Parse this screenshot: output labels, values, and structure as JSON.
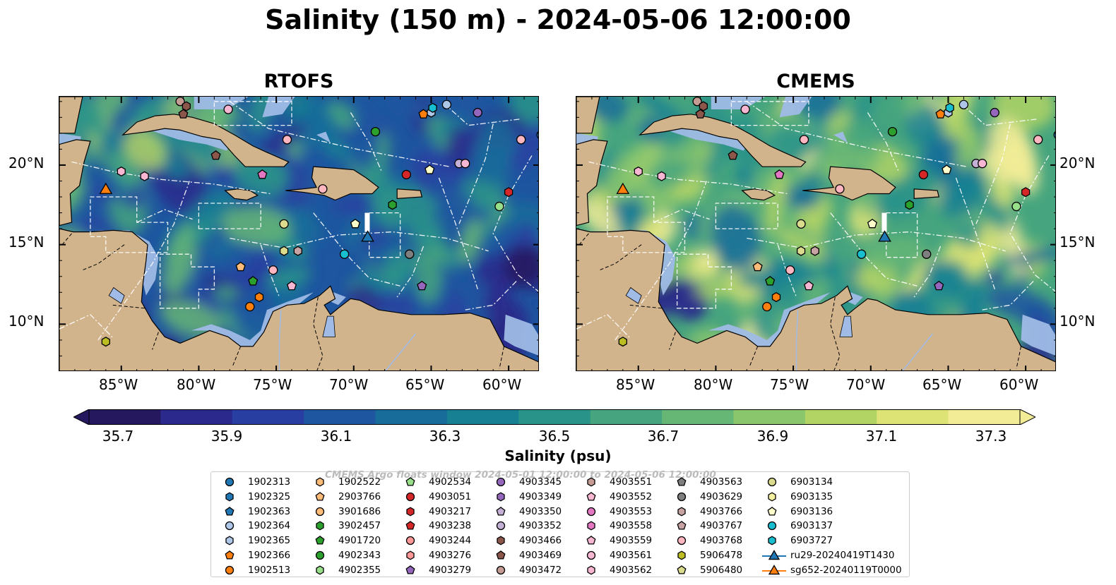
{
  "title": "Salinity (150 m) - 2024-05-06 12:00:00",
  "panels": [
    {
      "title": "RTOFS",
      "palette": "rtofs"
    },
    {
      "title": "CMEMS",
      "palette": "cmems"
    }
  ],
  "lon_ticks": [
    "85°W",
    "80°W",
    "75°W",
    "70°W",
    "65°W",
    "60°W"
  ],
  "lat_ticks": [
    "20°N",
    "15°N",
    "10°N"
  ],
  "colorbar": {
    "label": "Salinity (psu)",
    "ticks": [
      "35.7",
      "35.9",
      "36.1",
      "36.3",
      "36.5",
      "36.7",
      "36.9",
      "37.1",
      "37.3"
    ],
    "colors": [
      "#26185f",
      "#2b2a8c",
      "#283ea1",
      "#1e56a0",
      "#176c9a",
      "#178093",
      "#2a9389",
      "#46a57e",
      "#66b675",
      "#8ac66c",
      "#b1d465",
      "#dde475",
      "#f2ec96"
    ],
    "extend": "both"
  },
  "legend_watermark": "CMEMS Argo floats window 2024-05-01 12:00:00 to 2024-05-06 12:00:00",
  "legend": [
    {
      "label": "1902313",
      "color": "#1f77b4",
      "marker": "circle"
    },
    {
      "label": "1902325",
      "color": "#1f77b4",
      "marker": "hexagon"
    },
    {
      "label": "1902363",
      "color": "#1f77b4",
      "marker": "pentagon"
    },
    {
      "label": "1902364",
      "color": "#aec7e8",
      "marker": "circle"
    },
    {
      "label": "1902365",
      "color": "#aec7e8",
      "marker": "hexagon"
    },
    {
      "label": "1902366",
      "color": "#ff7f0e",
      "marker": "pentagon"
    },
    {
      "label": "1902513",
      "color": "#ff7f0e",
      "marker": "circle"
    },
    {
      "label": "1902522",
      "color": "#ffbb78",
      "marker": "hexagon"
    },
    {
      "label": "2903766",
      "color": "#ffbb78",
      "marker": "pentagon"
    },
    {
      "label": "3901686",
      "color": "#ffbb78",
      "marker": "circle"
    },
    {
      "label": "3902457",
      "color": "#2ca02c",
      "marker": "hexagon"
    },
    {
      "label": "4901720",
      "color": "#2ca02c",
      "marker": "pentagon"
    },
    {
      "label": "4902343",
      "color": "#2ca02c",
      "marker": "circle"
    },
    {
      "label": "4902355",
      "color": "#98df8a",
      "marker": "hexagon"
    },
    {
      "label": "4902534",
      "color": "#98df8a",
      "marker": "pentagon"
    },
    {
      "label": "4903051",
      "color": "#d62728",
      "marker": "circle"
    },
    {
      "label": "4903217",
      "color": "#d62728",
      "marker": "hexagon"
    },
    {
      "label": "4903238",
      "color": "#d62728",
      "marker": "pentagon"
    },
    {
      "label": "4903244",
      "color": "#ff9896",
      "marker": "circle"
    },
    {
      "label": "4903276",
      "color": "#ff9896",
      "marker": "hexagon"
    },
    {
      "label": "4903279",
      "color": "#9467bd",
      "marker": "pentagon"
    },
    {
      "label": "4903345",
      "color": "#9467bd",
      "marker": "circle"
    },
    {
      "label": "4903349",
      "color": "#9467bd",
      "marker": "hexagon"
    },
    {
      "label": "4903350",
      "color": "#c5b0d5",
      "marker": "pentagon"
    },
    {
      "label": "4903352",
      "color": "#c5b0d5",
      "marker": "circle"
    },
    {
      "label": "4903466",
      "color": "#8c564b",
      "marker": "hexagon"
    },
    {
      "label": "4903469",
      "color": "#8c564b",
      "marker": "pentagon"
    },
    {
      "label": "4903472",
      "color": "#c49c94",
      "marker": "circle"
    },
    {
      "label": "4903551",
      "color": "#c49c94",
      "marker": "hexagon"
    },
    {
      "label": "4903552",
      "color": "#f7b6d2",
      "marker": "pentagon"
    },
    {
      "label": "4903553",
      "color": "#e377c2",
      "marker": "circle"
    },
    {
      "label": "4903558",
      "color": "#e377c2",
      "marker": "hexagon"
    },
    {
      "label": "4903559",
      "color": "#f7b6d2",
      "marker": "pentagon"
    },
    {
      "label": "4903561",
      "color": "#f7b6d2",
      "marker": "circle"
    },
    {
      "label": "4903562",
      "color": "#f7b6d2",
      "marker": "hexagon"
    },
    {
      "label": "4903563",
      "color": "#7f7f7f",
      "marker": "pentagon"
    },
    {
      "label": "4903629",
      "color": "#7f7f7f",
      "marker": "circle"
    },
    {
      "label": "4903766",
      "color": "#c7a3a3",
      "marker": "hexagon"
    },
    {
      "label": "4903767",
      "color": "#c7a3a3",
      "marker": "pentagon"
    },
    {
      "label": "4903768",
      "color": "#ffb6c1",
      "marker": "circle"
    },
    {
      "label": "5906478",
      "color": "#bcbd22",
      "marker": "hexagon"
    },
    {
      "label": "5906480",
      "color": "#dbdb8d",
      "marker": "pentagon"
    },
    {
      "label": "6903134",
      "color": "#dbdb8d",
      "marker": "circle"
    },
    {
      "label": "6903135",
      "color": "#f5f0a0",
      "marker": "hexagon"
    },
    {
      "label": "6903136",
      "color": "#ffffcc",
      "marker": "pentagon"
    },
    {
      "label": "6903137",
      "color": "#17becf",
      "marker": "circle"
    },
    {
      "label": "6903727",
      "color": "#17becf",
      "marker": "hexagon"
    },
    {
      "label": "ru29-20240419T1430",
      "color": "#1f77b4",
      "marker": "triangle-line"
    },
    {
      "label": "sg652-20240119T0000",
      "color": "#ff7f0e",
      "marker": "triangle-line"
    }
  ],
  "floats": [
    {
      "lon": -81.2,
      "lat": 24.0,
      "color": "#c49c94",
      "marker": "circle"
    },
    {
      "lon": -80.8,
      "lat": 23.7,
      "color": "#8c564b",
      "marker": "hexagon"
    },
    {
      "lon": -81.0,
      "lat": 23.2,
      "color": "#8c564b",
      "marker": "pentagon"
    },
    {
      "lon": -78.1,
      "lat": 23.5,
      "color": "#f7b6d2",
      "marker": "circle"
    },
    {
      "lon": -78.9,
      "lat": 20.6,
      "color": "#8c564b",
      "marker": "pentagon"
    },
    {
      "lon": -85.0,
      "lat": 19.6,
      "color": "#f7b6d2",
      "marker": "hexagon"
    },
    {
      "lon": -83.5,
      "lat": 19.3,
      "color": "#f7b6d2",
      "marker": "hexagon"
    },
    {
      "lon": -74.3,
      "lat": 21.6,
      "color": "#ffb6c1",
      "marker": "circle"
    },
    {
      "lon": -75.9,
      "lat": 19.4,
      "color": "#e377c2",
      "marker": "pentagon"
    },
    {
      "lon": -72.0,
      "lat": 18.5,
      "color": "#ffb6c1",
      "marker": "circle"
    },
    {
      "lon": -68.6,
      "lat": 22.1,
      "color": "#2ca02c",
      "marker": "circle"
    },
    {
      "lon": -65.5,
      "lat": 23.2,
      "color": "#ff7f0e",
      "marker": "pentagon"
    },
    {
      "lon": -65.0,
      "lat": 23.3,
      "color": "#aec7e8",
      "marker": "hexagon"
    },
    {
      "lon": -64.9,
      "lat": 23.6,
      "color": "#17becf",
      "marker": "hexagon"
    },
    {
      "lon": -64.0,
      "lat": 23.8,
      "color": "#aec7e8",
      "marker": "circle"
    },
    {
      "lon": -62.0,
      "lat": 23.3,
      "color": "#9467bd",
      "marker": "circle"
    },
    {
      "lon": -59.2,
      "lat": 21.6,
      "color": "#ffb6c1",
      "marker": "circle"
    },
    {
      "lon": -57.9,
      "lat": 21.9,
      "color": "#1f77b4",
      "marker": "circle"
    },
    {
      "lon": -66.6,
      "lat": 19.4,
      "color": "#d62728",
      "marker": "circle"
    },
    {
      "lon": -65.1,
      "lat": 19.7,
      "color": "#ffffcc",
      "marker": "pentagon"
    },
    {
      "lon": -63.2,
      "lat": 20.1,
      "color": "#c5b0d5",
      "marker": "circle"
    },
    {
      "lon": -62.8,
      "lat": 20.1,
      "color": "#f7b6d2",
      "marker": "circle"
    },
    {
      "lon": -60.0,
      "lat": 18.3,
      "color": "#d62728",
      "marker": "hexagon"
    },
    {
      "lon": -60.6,
      "lat": 17.4,
      "color": "#98df8a",
      "marker": "circle"
    },
    {
      "lon": -67.5,
      "lat": 17.5,
      "color": "#2ca02c",
      "marker": "hexagon"
    },
    {
      "lon": -74.5,
      "lat": 16.3,
      "color": "#dbdb8d",
      "marker": "circle"
    },
    {
      "lon": -74.5,
      "lat": 14.6,
      "color": "#dbdb8d",
      "marker": "hexagon"
    },
    {
      "lon": -73.6,
      "lat": 14.6,
      "color": "#c7a3a3",
      "marker": "hexagon"
    },
    {
      "lon": -69.9,
      "lat": 16.3,
      "color": "#ffffcc",
      "marker": "pentagon"
    },
    {
      "lon": -70.6,
      "lat": 14.4,
      "color": "#17becf",
      "marker": "circle"
    },
    {
      "lon": -66.4,
      "lat": 14.4,
      "color": "#7f7f7f",
      "marker": "circle"
    },
    {
      "lon": -77.3,
      "lat": 13.6,
      "color": "#ffbb78",
      "marker": "pentagon"
    },
    {
      "lon": -76.5,
      "lat": 12.7,
      "color": "#2ca02c",
      "marker": "pentagon"
    },
    {
      "lon": -75.2,
      "lat": 13.4,
      "color": "#ffb6c1",
      "marker": "circle"
    },
    {
      "lon": -76.1,
      "lat": 11.7,
      "color": "#ff7f0e",
      "marker": "hexagon"
    },
    {
      "lon": -74.0,
      "lat": 12.4,
      "color": "#f7b6d2",
      "marker": "pentagon"
    },
    {
      "lon": -76.7,
      "lat": 11.1,
      "color": "#ff7f0e",
      "marker": "circle"
    },
    {
      "lon": -65.6,
      "lat": 12.4,
      "color": "#9467bd",
      "marker": "pentagon"
    },
    {
      "lon": -86.0,
      "lat": 8.9,
      "color": "#bcbd22",
      "marker": "hexagon"
    }
  ],
  "gliders": [
    {
      "lon": -69.1,
      "lat": 15.5,
      "color": "#1f77b4"
    },
    {
      "lon": -86.0,
      "lat": 18.5,
      "color": "#ff7f0e"
    }
  ]
}
